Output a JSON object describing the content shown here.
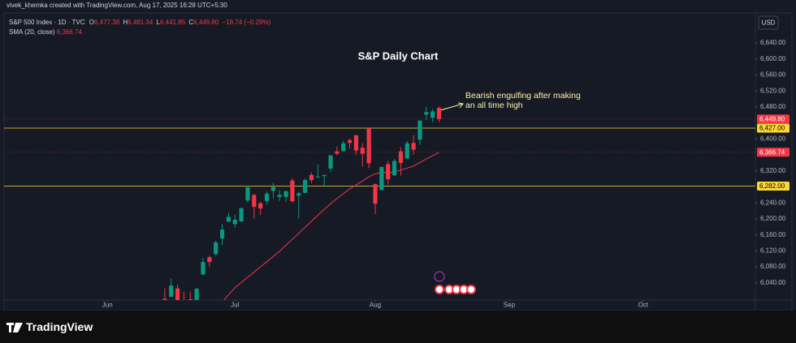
{
  "header": {
    "credit": "vivek_khemka created with TradingView.com, Aug 17, 2025 16:28 UTC+5:30",
    "symbol": "S&P 500 Index · 1D · TVC",
    "o_key": "O",
    "o": "6,477.38",
    "h_key": "H",
    "h": "6,481.34",
    "l_key": "L",
    "l": "6,441.85",
    "c_key": "C",
    "c": "6,449.80",
    "change": "−18.74 (−0.29%)",
    "sma_title": "SMA (20, close)",
    "sma_value": "6,366.74",
    "currency": "USD"
  },
  "footer": {
    "brand": "TradingView"
  },
  "chart_data": {
    "type": "candlestick",
    "title": "S&P Daily Chart",
    "annotation": [
      "Bearish engulfing after making",
      "an all time high"
    ],
    "categories": [
      null,
      null,
      null,
      null,
      null,
      null,
      null,
      null,
      null,
      null,
      null,
      null,
      null,
      null,
      null,
      null,
      null,
      null,
      null,
      null,
      null,
      null,
      null,
      null,
      null,
      null,
      null,
      null,
      null,
      null,
      null,
      null,
      null,
      null,
      null,
      null,
      null,
      null,
      null,
      null,
      null,
      null,
      null,
      null
    ],
    "open": [
      6000,
      6005,
      6026,
      5987,
      5999,
      5970,
      6061,
      6104,
      6112,
      6151,
      6193,
      6187,
      6194,
      6246,
      6260,
      6239,
      6245,
      6270,
      6255,
      6255,
      6296,
      6258,
      6265,
      6310,
      6304,
      6307,
      6326,
      6369,
      6370,
      6397,
      6409,
      6378,
      6427,
      6287,
      6272,
      6337,
      6309,
      6369,
      6351,
      6390,
      6398,
      6461,
      6453,
      6477.38
    ],
    "high": [
      6026,
      6050,
      6036,
      6018,
      6018,
      6028,
      6102,
      6108,
      6146,
      6188,
      6215,
      6210,
      6228,
      6284,
      6263,
      6243,
      6269,
      6290,
      6272,
      6271,
      6302,
      6268,
      6301,
      6316,
      6336,
      6310,
      6360,
      6381,
      6395,
      6401,
      6410,
      6390,
      6427,
      6288,
      6330,
      6345,
      6350,
      6379,
      6395,
      6409,
      6446,
      6481,
      6475,
      6481.34
    ],
    "low": [
      5963,
      6005,
      5974,
      5971,
      5952,
      5943,
      6059,
      6080,
      6108,
      6134,
      6193,
      6178,
      6192,
      6241,
      6201,
      6210,
      6235,
      6251,
      6245,
      6243,
      6241,
      6201,
      6264,
      6289,
      6303,
      6282,
      6317,
      6360,
      6368,
      6375,
      6360,
      6331,
      6327,
      6212,
      6272,
      6286,
      6307,
      6309,
      6350,
      6360,
      6385,
      6447,
      6442,
      6441.85
    ],
    "close": [
      5977,
      6033,
      5983,
      5981,
      5968,
      6025,
      6092,
      6092,
      6141,
      6173,
      6205,
      6198,
      6227,
      6279,
      6230,
      6226,
      6263,
      6280,
      6260,
      6269,
      6244,
      6264,
      6297,
      6297,
      6306,
      6310,
      6359,
      6363,
      6389,
      6390,
      6371,
      6363,
      6339,
      6238,
      6330,
      6299,
      6345,
      6340,
      6389,
      6373,
      6446,
      6467,
      6469,
      6449.8
    ],
    "up_color": "#089981",
    "down_color": "#f23645",
    "sma": {
      "name": "SMA (20, close)",
      "color": "#f23645",
      "values": [
        null,
        null,
        null,
        null,
        null,
        null,
        null,
        null,
        null,
        5992,
        6010,
        6028,
        6041,
        6054,
        6067,
        6080,
        6093,
        6106,
        6119,
        6134,
        6149,
        6164,
        6179,
        6194,
        6209,
        6224,
        6238,
        6251,
        6263,
        6275,
        6285,
        6295,
        6305,
        6313,
        6316,
        6316,
        6317,
        6322,
        6327,
        6332,
        6341,
        6350,
        6358,
        6366.74
      ]
    },
    "price_markers": [
      {
        "value": 6449.8,
        "label": "6,449.80",
        "color": "#f23645",
        "line": false
      },
      {
        "value": 6427,
        "label": "6,427.00",
        "color": "#fdd835",
        "line": true
      },
      {
        "value": 6366.74,
        "label": "6,366.74",
        "color": "#f23645",
        "line": false
      },
      {
        "value": 6282,
        "label": "6,282.00",
        "color": "#fdd835",
        "line": true
      }
    ],
    "xlim": [
      -25.2,
      92.6
    ],
    "xticks": [
      {
        "value": -9,
        "label": "Jun"
      },
      {
        "value": 11,
        "label": "Jul"
      },
      {
        "value": 33,
        "label": "Aug"
      },
      {
        "value": 54,
        "label": "Sep"
      },
      {
        "value": 75,
        "label": "Oct"
      }
    ],
    "ylim": [
      5997,
      6707
    ],
    "yticks": [
      {
        "value": 6040,
        "label": "6,040.00"
      },
      {
        "value": 6080,
        "label": "6,080.00"
      },
      {
        "value": 6120,
        "label": "6,120.00"
      },
      {
        "value": 6160,
        "label": "6,160.00"
      },
      {
        "value": 6200,
        "label": "6,200.00"
      },
      {
        "value": 6240,
        "label": "6,240.00"
      },
      {
        "value": 6320,
        "label": "6,320.00"
      },
      {
        "value": 6400,
        "label": "6,400.00"
      },
      {
        "value": 6480,
        "label": "6,480.00"
      },
      {
        "value": 6520,
        "label": "6,520.00"
      },
      {
        "value": 6560,
        "label": "6,560.00"
      },
      {
        "value": 6600,
        "label": "6,600.00"
      },
      {
        "value": 6640,
        "label": "6,640.00"
      }
    ],
    "grid": false
  }
}
